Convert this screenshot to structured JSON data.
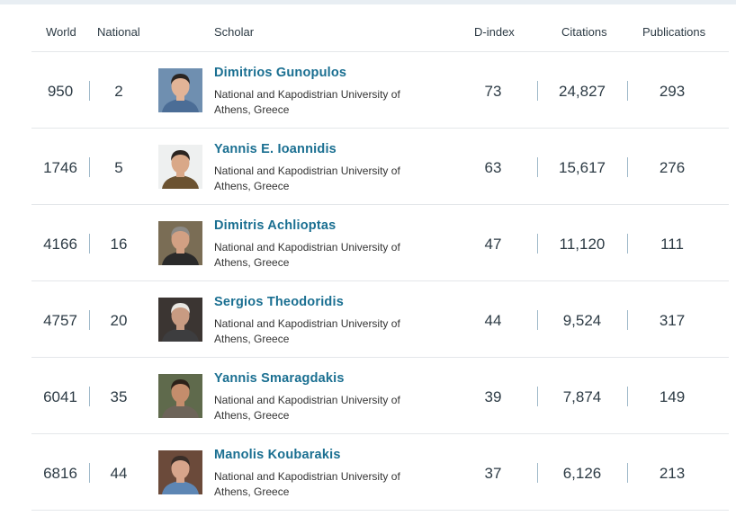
{
  "header": {
    "world": "World",
    "national": "National",
    "scholar": "Scholar",
    "dindex": "D-index",
    "citations": "Citations",
    "publications": "Publications"
  },
  "scholars": [
    {
      "world": "950",
      "national": "2",
      "name": "Dimitrios Gunopulos",
      "affiliation": "National and Kapodistrian University of Athens, Greece",
      "dindex": "73",
      "citations": "24,827",
      "publications": "293",
      "bg": "#6f8fb0",
      "skin": "#e2b497",
      "hair": "#2a2522",
      "shirt": "#4b6d96"
    },
    {
      "world": "1746",
      "national": "5",
      "name": "Yannis E. Ioannidis",
      "affiliation": "National and Kapodistrian University of Athens, Greece",
      "dindex": "63",
      "citations": "15,617",
      "publications": "276",
      "bg": "#eef0f0",
      "skin": "#d9a888",
      "hair": "#2b2420",
      "shirt": "#6b5231"
    },
    {
      "world": "4166",
      "national": "16",
      "name": "Dimitris Achlioptas",
      "affiliation": "National and Kapodistrian University of Athens, Greece",
      "dindex": "47",
      "citations": "11,120",
      "publications": "111",
      "bg": "#7a6d55",
      "skin": "#d2a083",
      "hair": "#8c8a86",
      "shirt": "#2a2a2a"
    },
    {
      "world": "4757",
      "national": "20",
      "name": "Sergios Theodoridis",
      "affiliation": "National and Kapodistrian University of Athens, Greece",
      "dindex": "44",
      "citations": "9,524",
      "publications": "317",
      "bg": "#3b3532",
      "skin": "#c89b82",
      "hair": "#e9e7e2",
      "shirt": "#3d3d3f"
    },
    {
      "world": "6041",
      "national": "35",
      "name": "Yannis Smaragdakis",
      "affiliation": "National and Kapodistrian University of Athens, Greece",
      "dindex": "39",
      "citations": "7,874",
      "publications": "149",
      "bg": "#5f6a4c",
      "skin": "#c48d6c",
      "hair": "#2c2119",
      "shirt": "#6d6459"
    },
    {
      "world": "6816",
      "national": "44",
      "name": "Manolis Koubarakis",
      "affiliation": "National and Kapodistrian University of Athens, Greece",
      "dindex": "37",
      "citations": "6,126",
      "publications": "213",
      "bg": "#6b4a3a",
      "skin": "#d7a58b",
      "hair": "#3a2e28",
      "shirt": "#5d86b4"
    }
  ]
}
